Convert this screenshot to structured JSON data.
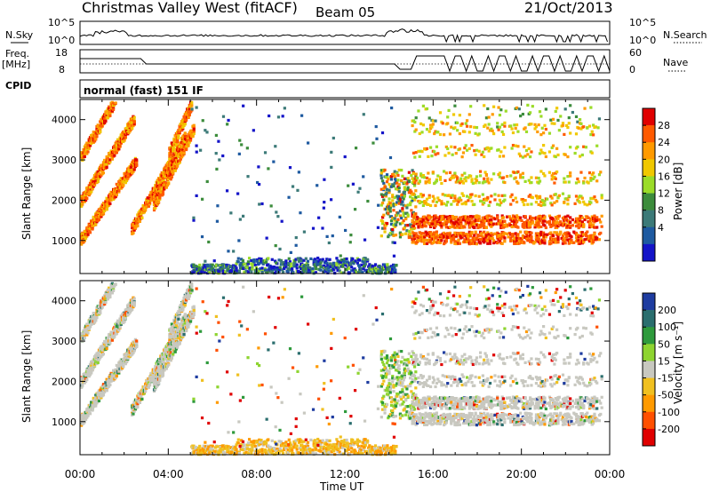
{
  "header": {
    "title": "Christmas Valley West (fitACF)",
    "beam": "Beam 05",
    "date": "21/Oct/2013"
  },
  "top_panels": {
    "nsky_label": "N.Sky",
    "nsearch_label": "N.Search",
    "left_ticks": [
      "10^5",
      "10^0"
    ],
    "right_ticks": [
      "10^5",
      "10^0"
    ],
    "freq_label_1": "Freq.",
    "freq_label_2": "[MHz]",
    "freq_ticks": [
      "18",
      "8"
    ],
    "nave_label": "Nave",
    "nave_ticks": [
      "60",
      "0"
    ],
    "cpid_label": "CPID",
    "cpid_value": "normal (fast) 151 IF"
  },
  "chart_data": [
    {
      "type": "heatmap",
      "quantity": "power",
      "xlabel": "Time UT",
      "ylabel": "Slant Range [km]",
      "x_range_hours": [
        0,
        24
      ],
      "ylim": [
        180,
        4500
      ],
      "y_ticks": [
        "4000",
        "3000",
        "2000",
        "1000"
      ],
      "x_ticks": [
        "00:00",
        "04:00",
        "08:00",
        "12:00",
        "16:00",
        "20:00",
        "00:00"
      ],
      "colorbar_label": "Power [dB]",
      "colorbar_ticks": [
        "28",
        "24",
        "20",
        "16",
        "12",
        "8",
        "4"
      ],
      "colorbar_colors": [
        "#e00000",
        "#ff5a00",
        "#ff9a00",
        "#f0c800",
        "#9bdc28",
        "#3c8c3c",
        "#3c7a78",
        "#1e5aa0",
        "#1414c8"
      ]
    },
    {
      "type": "heatmap",
      "quantity": "velocity",
      "xlabel": "Time UT",
      "ylabel": "Slant Range [km]",
      "x_range_hours": [
        0,
        24
      ],
      "ylim": [
        180,
        4500
      ],
      "y_ticks": [
        "4000",
        "3000",
        "2000",
        "1000"
      ],
      "x_ticks": [
        "00:00",
        "04:00",
        "08:00",
        "12:00",
        "16:00",
        "20:00",
        "00:00"
      ],
      "colorbar_label": "Velocity [m s⁻¹]",
      "colorbar_ticks": [
        "200",
        "100",
        "50",
        "15",
        "-15",
        "-50",
        "-100",
        "-200"
      ],
      "colorbar_colors": [
        "#1e3ca0",
        "#2a6e6e",
        "#2e9a3c",
        "#8ed430",
        "#c8c8c0",
        "#f0c020",
        "#ff9a00",
        "#ff5000",
        "#e00000"
      ]
    }
  ]
}
